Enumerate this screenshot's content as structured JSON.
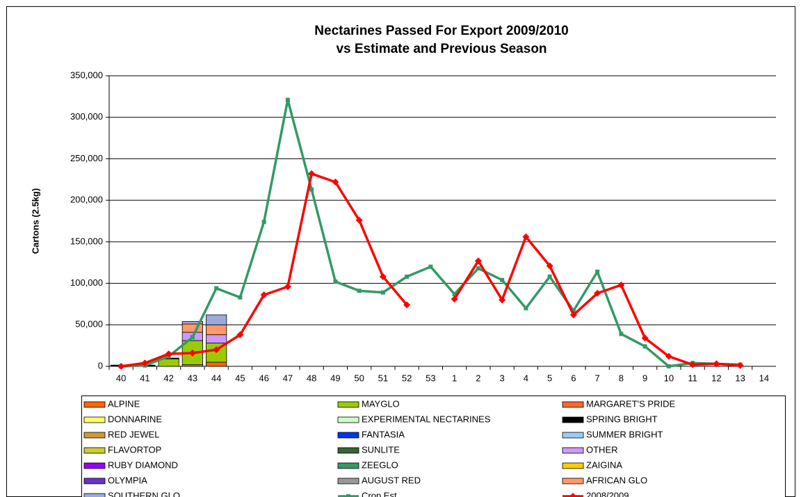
{
  "chart_data": {
    "type": "bar",
    "title": [
      "Nectarines Passed For Export 2009/2010",
      "vs Estimate and Previous Season"
    ],
    "y_label": "Cartons (2.5kg)",
    "categories": [
      "40",
      "41",
      "42",
      "43",
      "44",
      "45",
      "46",
      "47",
      "48",
      "49",
      "50",
      "51",
      "52",
      "53",
      "1",
      "2",
      "3",
      "4",
      "5",
      "6",
      "7",
      "8",
      "9",
      "10",
      "11",
      "12",
      "13",
      "14"
    ],
    "ylim": [
      0,
      350000
    ],
    "yticks": [
      0,
      {
        "value": 50000,
        "label": "50,000"
      },
      {
        "value": 100000,
        "label": "100,000"
      },
      {
        "value": 150000,
        "label": "150,000"
      },
      {
        "value": 200000,
        "label": "200,000"
      },
      {
        "value": 250000,
        "label": "250,000"
      },
      {
        "value": 300000,
        "label": "300,000"
      },
      {
        "value": 350000,
        "label": "350,000"
      }
    ],
    "grid": true,
    "legend": "bottom",
    "series": [
      {
        "name": "ALPINE",
        "type": "bar",
        "color": "#ff6600",
        "values": [
          null,
          null,
          null,
          2000,
          5000,
          null,
          null,
          null,
          null,
          null,
          null,
          null,
          null,
          null,
          null,
          null,
          null,
          null,
          null,
          null,
          null,
          null,
          null,
          null,
          null,
          null,
          null,
          null
        ]
      },
      {
        "name": "MAYGLO",
        "type": "bar",
        "color": "#99cc00",
        "values": [
          null,
          null,
          9000,
          29000,
          23000,
          null,
          null,
          null,
          null,
          null,
          null,
          null,
          null,
          null,
          null,
          null,
          null,
          null,
          null,
          null,
          null,
          null,
          null,
          null,
          null,
          null,
          null,
          null
        ]
      },
      {
        "name": "MARGARET'S PRIDE",
        "type": "bar",
        "color": "#ff6633",
        "values": [
          null,
          null,
          null,
          null,
          null,
          null,
          null,
          null,
          null,
          null,
          null,
          null,
          null,
          null,
          null,
          null,
          null,
          null,
          null,
          null,
          null,
          null,
          null,
          null,
          null,
          null,
          null,
          null
        ]
      },
      {
        "name": "DONNARINE",
        "type": "bar",
        "color": "#ffff66",
        "values": [
          null,
          null,
          null,
          null,
          null,
          null,
          null,
          null,
          null,
          null,
          null,
          null,
          null,
          null,
          null,
          null,
          null,
          null,
          null,
          null,
          null,
          null,
          null,
          null,
          null,
          null,
          null,
          null
        ]
      },
      {
        "name": "EXPERIMENTAL NECTARINES",
        "type": "bar",
        "color": "#ccffcc",
        "values": [
          null,
          null,
          null,
          null,
          null,
          null,
          null,
          null,
          null,
          null,
          null,
          null,
          null,
          null,
          null,
          null,
          null,
          null,
          null,
          null,
          null,
          null,
          null,
          null,
          null,
          null,
          null,
          null
        ]
      },
      {
        "name": "SPRING BRIGHT",
        "type": "bar",
        "color": "#000000",
        "values": [
          1500,
          1500,
          1000,
          null,
          null,
          null,
          null,
          null,
          null,
          null,
          null,
          null,
          null,
          null,
          null,
          null,
          null,
          null,
          null,
          null,
          null,
          null,
          null,
          null,
          null,
          null,
          null,
          null
        ]
      },
      {
        "name": "RED JEWEL",
        "type": "bar",
        "color": "#cc9933",
        "values": [
          null,
          null,
          null,
          null,
          null,
          null,
          null,
          null,
          null,
          null,
          null,
          null,
          null,
          null,
          null,
          null,
          null,
          null,
          null,
          null,
          null,
          null,
          null,
          null,
          null,
          null,
          null,
          null
        ]
      },
      {
        "name": "FANTASIA",
        "type": "bar",
        "color": "#0033ff",
        "values": [
          null,
          null,
          null,
          null,
          null,
          null,
          null,
          null,
          null,
          null,
          null,
          null,
          null,
          null,
          null,
          null,
          null,
          null,
          null,
          null,
          null,
          null,
          null,
          null,
          null,
          null,
          null,
          null
        ]
      },
      {
        "name": "SUMMER BRIGHT",
        "type": "bar",
        "color": "#99ccff",
        "values": [
          null,
          null,
          null,
          null,
          null,
          null,
          null,
          null,
          null,
          null,
          null,
          null,
          null,
          null,
          null,
          null,
          null,
          null,
          null,
          null,
          null,
          null,
          null,
          null,
          null,
          null,
          null,
          null
        ]
      },
      {
        "name": "FLAVORTOP",
        "type": "bar",
        "color": "#cccc33",
        "values": [
          null,
          null,
          null,
          null,
          null,
          null,
          null,
          null,
          null,
          null,
          null,
          null,
          null,
          null,
          null,
          null,
          null,
          null,
          null,
          null,
          null,
          null,
          null,
          null,
          null,
          null,
          null,
          null
        ]
      },
      {
        "name": "SUNLITE",
        "type": "bar",
        "color": "#336633",
        "values": [
          null,
          null,
          null,
          null,
          null,
          null,
          null,
          null,
          null,
          null,
          null,
          null,
          null,
          null,
          null,
          null,
          null,
          null,
          null,
          null,
          null,
          null,
          null,
          null,
          null,
          null,
          null,
          null
        ]
      },
      {
        "name": "OTHER",
        "type": "bar",
        "color": "#cc99ff",
        "values": [
          null,
          null,
          null,
          10000,
          10000,
          null,
          null,
          null,
          null,
          null,
          null,
          null,
          null,
          null,
          null,
          null,
          null,
          null,
          null,
          null,
          null,
          null,
          null,
          null,
          null,
          null,
          null,
          null
        ]
      },
      {
        "name": "RUBY DIAMOND",
        "type": "bar",
        "color": "#9900ff",
        "values": [
          null,
          null,
          null,
          null,
          null,
          null,
          null,
          null,
          null,
          null,
          null,
          null,
          null,
          null,
          null,
          null,
          null,
          null,
          null,
          null,
          null,
          null,
          null,
          null,
          null,
          null,
          null,
          null
        ]
      },
      {
        "name": "ZEEGLO",
        "type": "bar",
        "color": "#339966",
        "values": [
          null,
          null,
          null,
          null,
          null,
          null,
          null,
          null,
          null,
          null,
          null,
          null,
          null,
          null,
          null,
          null,
          null,
          null,
          null,
          null,
          null,
          null,
          null,
          null,
          null,
          null,
          null,
          null
        ]
      },
      {
        "name": "ZAIGINA",
        "type": "bar",
        "color": "#ffcc00",
        "values": [
          null,
          null,
          null,
          null,
          null,
          null,
          null,
          null,
          null,
          null,
          null,
          null,
          null,
          null,
          null,
          null,
          null,
          null,
          null,
          null,
          null,
          null,
          null,
          null,
          null,
          null,
          null,
          null
        ]
      },
      {
        "name": "OLYMPIA",
        "type": "bar",
        "color": "#6633cc",
        "values": [
          null,
          null,
          null,
          null,
          null,
          null,
          null,
          null,
          null,
          null,
          null,
          null,
          null,
          null,
          null,
          null,
          null,
          null,
          null,
          null,
          null,
          null,
          null,
          null,
          null,
          null,
          null,
          null
        ]
      },
      {
        "name": "AUGUST RED",
        "type": "bar",
        "color": "#999999",
        "values": [
          null,
          null,
          null,
          null,
          null,
          null,
          null,
          null,
          null,
          null,
          null,
          null,
          null,
          null,
          null,
          null,
          null,
          null,
          null,
          null,
          null,
          null,
          null,
          null,
          null,
          null,
          null,
          null
        ]
      },
      {
        "name": "AFRICAN GLO",
        "type": "bar",
        "color": "#ff9966",
        "values": [
          null,
          null,
          null,
          10000,
          12000,
          null,
          null,
          null,
          null,
          null,
          null,
          null,
          null,
          null,
          null,
          null,
          null,
          null,
          null,
          null,
          null,
          null,
          null,
          null,
          null,
          null,
          null,
          null
        ]
      },
      {
        "name": "SOUTHERN GLO",
        "type": "bar",
        "color": "#99aadd",
        "values": [
          null,
          null,
          null,
          3000,
          12000,
          null,
          null,
          null,
          null,
          null,
          null,
          null,
          null,
          null,
          null,
          null,
          null,
          null,
          null,
          null,
          null,
          null,
          null,
          null,
          null,
          null,
          null,
          null
        ]
      },
      {
        "name": "Crop Est",
        "type": "line",
        "marker": "square",
        "color": "#339966",
        "values": [
          0,
          1000,
          12000,
          35000,
          94000,
          83000,
          174000,
          321000,
          213000,
          102000,
          91000,
          89000,
          108000,
          120000,
          87000,
          118000,
          104000,
          70000,
          108000,
          67000,
          114000,
          39000,
          24000,
          0,
          4000,
          3000,
          2000,
          null
        ]
      },
      {
        "name": "2008/2009",
        "type": "line",
        "marker": "diamond",
        "color": "#ff0000",
        "values": [
          0,
          4000,
          15000,
          16000,
          20000,
          38000,
          86000,
          96000,
          232000,
          222000,
          176000,
          108000,
          74000,
          null,
          81000,
          127000,
          80000,
          156000,
          121000,
          62000,
          88000,
          98000,
          34000,
          12000,
          2000,
          3000,
          1000,
          null
        ]
      }
    ]
  }
}
